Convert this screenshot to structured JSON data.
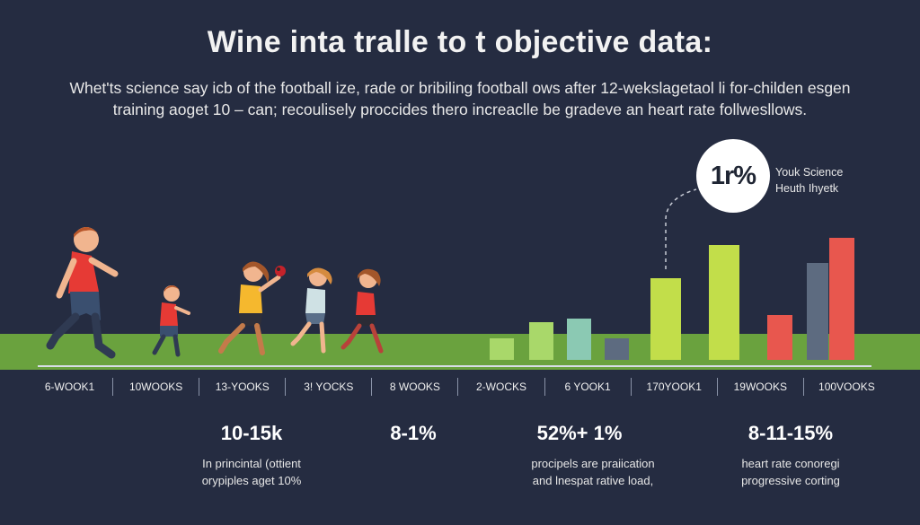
{
  "title": "Wine inta tralle to t objective data:",
  "subtitle": "Whet'ts science say icb of the football ize, rade or bribiling football ows after 12-wekslagetaol li for-childen esgen training aoget 10 – can; recoulisely proccides thero increaclle be gradeve an heart rate follwesllows.",
  "badge": {
    "value": "1r%",
    "caption_line1": "Youk Science",
    "caption_line2": "Heuth Ihyetk"
  },
  "weeks": [
    "6-WOOK1",
    "10WOOKS",
    "13-YOOKS",
    "3! YOCKS",
    "8 WOOKS",
    "2-WOCKS",
    "6 YOOK1",
    "170YOOK1",
    "19WOOKS",
    "100VOOKS"
  ],
  "stats": [
    {
      "value": "10-15k",
      "note_line1": "In princintal (ottient",
      "note_line2": "orypiples aget 10%"
    },
    {
      "value": "8-1%",
      "note_line1": "",
      "note_line2": ""
    },
    {
      "value": "52%+ 1%",
      "note_line1": "procipels are praiication",
      "note_line2": "and lnespat rative load,"
    },
    {
      "value": "8-11-15%",
      "note_line1": "heart rate conoregi",
      "note_line2": "progressive corting"
    }
  ],
  "colors": {
    "background": "#252c41",
    "ground": "#6aa23e",
    "bar_green_light": "#a9d86a",
    "bar_lime": "#c2de4a",
    "bar_teal": "#8bc9b3",
    "bar_slate": "#5d6b80",
    "bar_red": "#e8574e",
    "jersey_red": "#e63a35",
    "jersey_yellow": "#f5b82e"
  },
  "icons": [
    "running-child-icon",
    "football-icon",
    "bar-chart-icon"
  ]
}
